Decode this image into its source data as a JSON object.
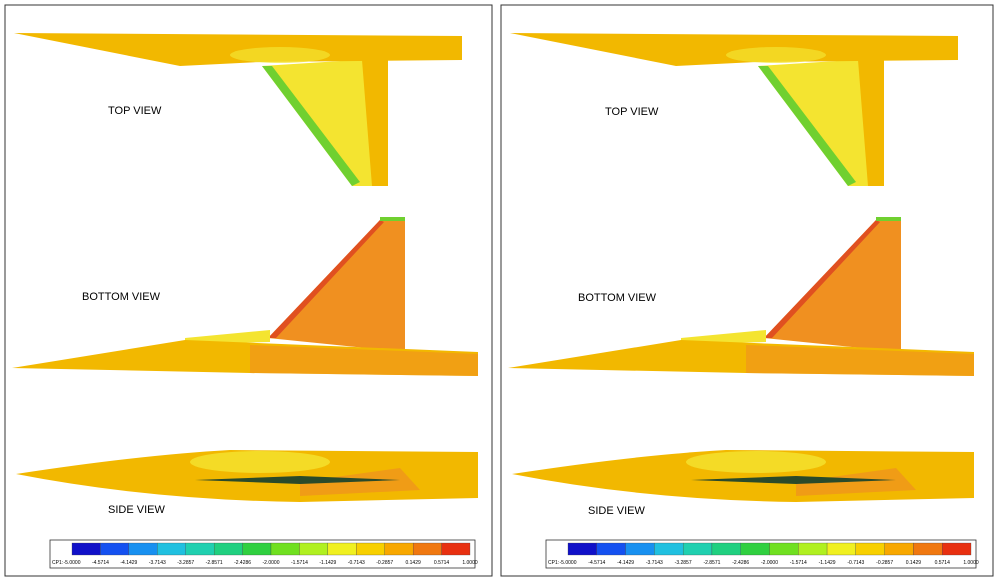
{
  "panels": [
    {
      "views": [
        "TOP VIEW",
        "BOTTOM VIEW",
        "SIDE VIEW"
      ],
      "legend": {
        "title": "CP1:",
        "ticks": [
          "-5.0000",
          "-4.5714",
          "-4.1429",
          "-3.7143",
          "-3.2857",
          "-2.8571",
          "-2.4286",
          "-2.0000",
          "-1.5714",
          "-1.1429",
          "-0.7143",
          "-0.2857",
          "0.1429",
          "0.5714",
          "1.0000"
        ]
      }
    },
    {
      "views": [
        "TOP VIEW",
        "BOTTOM VIEW",
        "SIDE VIEW"
      ],
      "legend": {
        "title": "CP1:",
        "ticks": [
          "-5.0000",
          "-4.5714",
          "-4.1429",
          "-3.7143",
          "-3.2857",
          "-2.8571",
          "-2.4286",
          "-2.0000",
          "-1.5714",
          "-1.1429",
          "-0.7143",
          "-0.2857",
          "0.1429",
          "0.5714",
          "1.0000"
        ]
      }
    }
  ],
  "legend_colors": [
    "#1010c8",
    "#1450f0",
    "#1890f0",
    "#20c0e0",
    "#20d0b0",
    "#20d080",
    "#30d040",
    "#70e020",
    "#b0f020",
    "#f0f020",
    "#f8d000",
    "#f8a800",
    "#f07810",
    "#e83010"
  ]
}
